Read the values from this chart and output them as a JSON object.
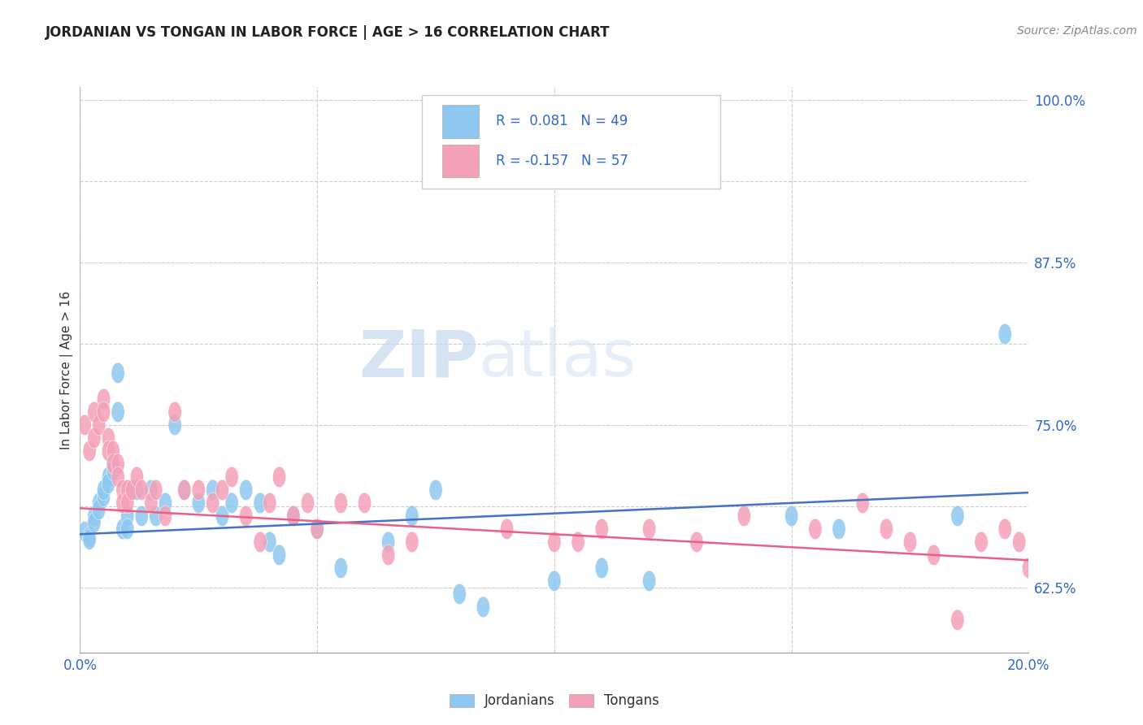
{
  "title": "JORDANIAN VS TONGAN IN LABOR FORCE | AGE > 16 CORRELATION CHART",
  "source": "Source: ZipAtlas.com",
  "ylabel": "In Labor Force | Age > 16",
  "xlim": [
    0.0,
    0.2
  ],
  "ylim": [
    0.575,
    1.01
  ],
  "ytick_vals": [
    0.625,
    0.75,
    0.875,
    1.0
  ],
  "ytick_labels": [
    "62.5%",
    "75.0%",
    "87.5%",
    "100.0%"
  ],
  "ygrid_vals": [
    0.625,
    0.6875,
    0.75,
    0.8125,
    0.875,
    0.9375,
    1.0
  ],
  "xtick_vals": [
    0.0,
    0.2
  ],
  "xtick_labels": [
    "0.0%",
    "20.0%"
  ],
  "xgrid_vals": [
    0.0,
    0.05,
    0.1,
    0.15,
    0.2
  ],
  "legend1_R": "0.081",
  "legend1_N": "49",
  "legend2_R": "-0.157",
  "legend2_N": "57",
  "color_jordan": "#8EC8F0",
  "color_tonga": "#F4A0B8",
  "color_jordan_trend": "#4472C4",
  "color_tonga_trend": "#E8608A",
  "watermark": "ZIPatlas",
  "jordan_trend_y0": 0.666,
  "jordan_trend_y1": 0.698,
  "tonga_trend_y0": 0.686,
  "tonga_trend_y1": 0.646,
  "jordan_x": [
    0.001,
    0.002,
    0.002,
    0.003,
    0.003,
    0.004,
    0.004,
    0.005,
    0.005,
    0.006,
    0.006,
    0.007,
    0.007,
    0.008,
    0.008,
    0.009,
    0.01,
    0.01,
    0.011,
    0.012,
    0.013,
    0.015,
    0.016,
    0.018,
    0.02,
    0.022,
    0.025,
    0.028,
    0.03,
    0.032,
    0.035,
    0.038,
    0.04,
    0.042,
    0.045,
    0.05,
    0.055,
    0.065,
    0.07,
    0.075,
    0.08,
    0.085,
    0.1,
    0.11,
    0.12,
    0.15,
    0.16,
    0.185,
    0.195
  ],
  "jordan_y": [
    0.668,
    0.664,
    0.662,
    0.68,
    0.675,
    0.69,
    0.685,
    0.695,
    0.7,
    0.71,
    0.705,
    0.72,
    0.715,
    0.76,
    0.79,
    0.67,
    0.68,
    0.67,
    0.7,
    0.7,
    0.68,
    0.7,
    0.68,
    0.69,
    0.75,
    0.7,
    0.69,
    0.7,
    0.68,
    0.69,
    0.7,
    0.69,
    0.66,
    0.65,
    0.68,
    0.67,
    0.64,
    0.66,
    0.68,
    0.7,
    0.62,
    0.61,
    0.63,
    0.64,
    0.63,
    0.68,
    0.67,
    0.68,
    0.82
  ],
  "tonga_x": [
    0.001,
    0.002,
    0.003,
    0.003,
    0.004,
    0.005,
    0.005,
    0.006,
    0.006,
    0.007,
    0.007,
    0.008,
    0.008,
    0.009,
    0.009,
    0.01,
    0.01,
    0.011,
    0.012,
    0.013,
    0.015,
    0.016,
    0.018,
    0.02,
    0.022,
    0.025,
    0.028,
    0.03,
    0.032,
    0.035,
    0.038,
    0.04,
    0.042,
    0.045,
    0.048,
    0.05,
    0.055,
    0.06,
    0.065,
    0.07,
    0.09,
    0.1,
    0.105,
    0.11,
    0.12,
    0.13,
    0.14,
    0.155,
    0.165,
    0.17,
    0.175,
    0.18,
    0.185,
    0.19,
    0.195,
    0.198,
    0.2
  ],
  "tonga_y": [
    0.75,
    0.73,
    0.76,
    0.74,
    0.75,
    0.77,
    0.76,
    0.74,
    0.73,
    0.73,
    0.72,
    0.72,
    0.71,
    0.7,
    0.69,
    0.7,
    0.69,
    0.7,
    0.71,
    0.7,
    0.69,
    0.7,
    0.68,
    0.76,
    0.7,
    0.7,
    0.69,
    0.7,
    0.71,
    0.68,
    0.66,
    0.69,
    0.71,
    0.68,
    0.69,
    0.67,
    0.69,
    0.69,
    0.65,
    0.66,
    0.67,
    0.66,
    0.66,
    0.67,
    0.67,
    0.66,
    0.68,
    0.67,
    0.69,
    0.67,
    0.66,
    0.65,
    0.6,
    0.66,
    0.67,
    0.66,
    0.64
  ]
}
